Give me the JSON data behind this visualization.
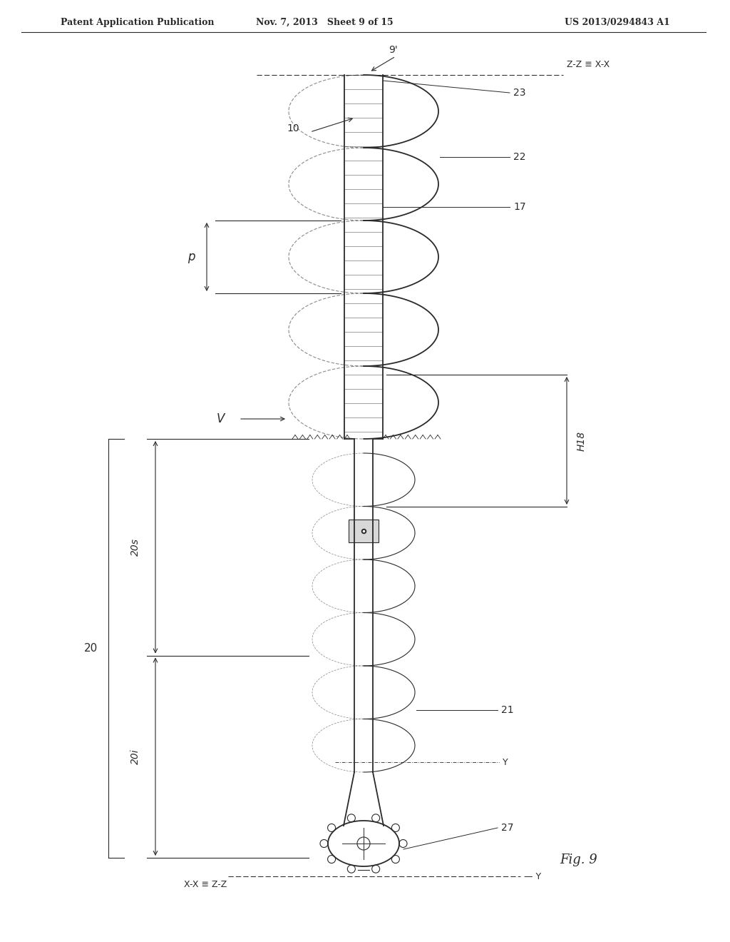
{
  "header_left": "Patent Application Publication",
  "header_mid": "Nov. 7, 2013   Sheet 9 of 15",
  "header_right": "US 2013/0294843 A1",
  "background_color": "#ffffff",
  "line_color": "#2a2a2a",
  "fig_label": "Fig. 9",
  "label_9prime": "9'",
  "label_10": "10",
  "label_17": "17",
  "label_22": "22",
  "label_23": "23",
  "label_p": "p",
  "label_V": "V",
  "label_H18": "H18",
  "label_20": "20",
  "label_20s": "20s",
  "label_20i": "20i",
  "label_21": "21",
  "label_27": "27",
  "label_Y": "Y",
  "label_ZZ_XX": "Z-Z ≡ X-X",
  "label_XX_ZZ": "X-X ≡ Z-Z"
}
